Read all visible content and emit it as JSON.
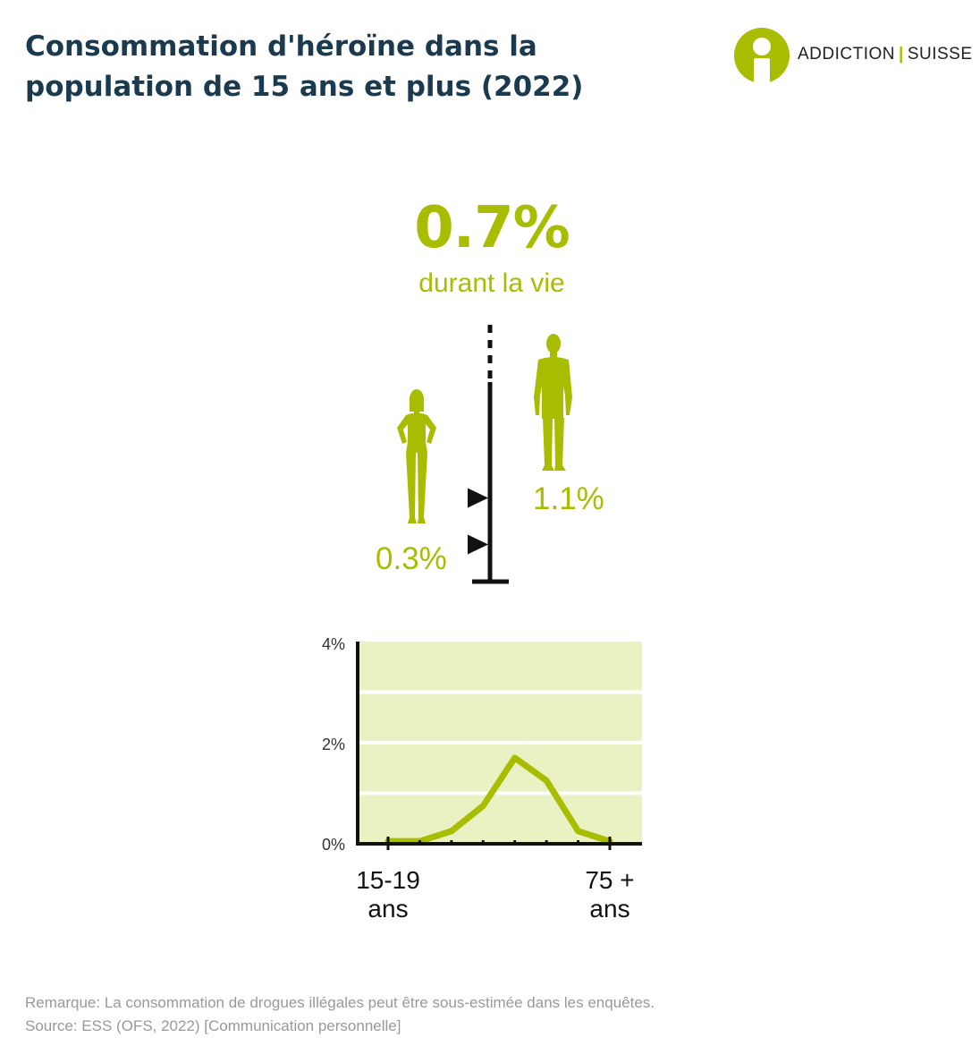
{
  "title": "Consommation d'héroïne dans la population de 15 ans et plus (2022)",
  "logo": {
    "left": "ADDICTION",
    "right": "SUISSE"
  },
  "colors": {
    "accent": "#a8bd00",
    "title": "#1a3a4f",
    "plot_bg": "#eaf2c4",
    "axis": "#111111"
  },
  "lifetime": {
    "value": "0.7%",
    "label": "durant la vie"
  },
  "gender": {
    "men": {
      "icon": "man-silhouette-icon",
      "value": 1.1,
      "label": "1.1%"
    },
    "women": {
      "icon": "woman-silhouette-icon",
      "value": 0.3,
      "label": "0.3%"
    }
  },
  "chart_data": {
    "type": "line",
    "x_first_label": "15-19 ans",
    "x_last_label": "75 + ans",
    "x_first_line1": "15-19",
    "x_last_line1": "75 +",
    "x_unit": "ans",
    "series": [
      {
        "values": [
          0.05,
          0.05,
          0.25,
          0.75,
          1.7,
          1.25,
          0.25,
          0.05
        ]
      }
    ],
    "ylim": [
      0,
      4
    ],
    "yticks": [
      "0%",
      "2%",
      "4%"
    ],
    "grid": true
  },
  "footer": {
    "note": "Remarque: La consommation de drogues illégales peut être sous-estimée dans les enquêtes.",
    "source": "Source: ESS (OFS, 2022) [Communication personnelle]"
  }
}
